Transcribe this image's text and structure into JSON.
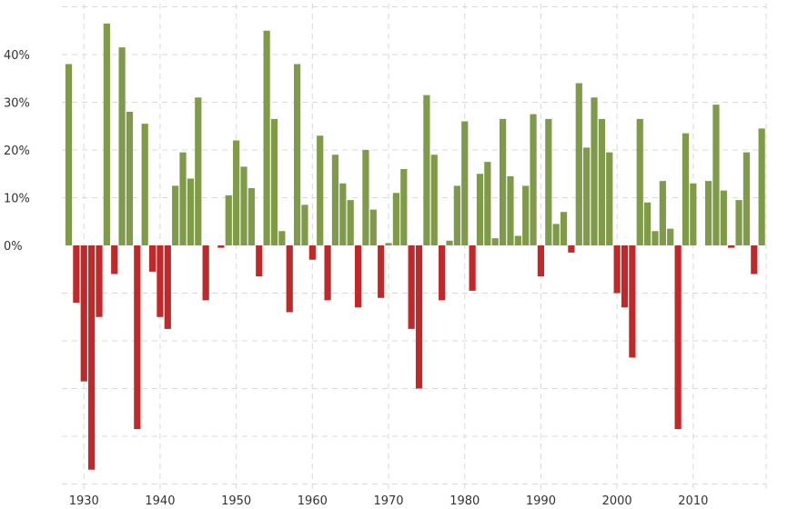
{
  "chart_data": {
    "type": "bar",
    "title": "",
    "xlabel": "",
    "ylabel": "",
    "x": [
      1928,
      1929,
      1930,
      1931,
      1932,
      1933,
      1934,
      1935,
      1936,
      1937,
      1938,
      1939,
      1940,
      1941,
      1942,
      1943,
      1944,
      1945,
      1946,
      1947,
      1948,
      1949,
      1950,
      1951,
      1952,
      1953,
      1954,
      1955,
      1956,
      1957,
      1958,
      1959,
      1960,
      1961,
      1962,
      1963,
      1964,
      1965,
      1966,
      1967,
      1968,
      1969,
      1970,
      1971,
      1972,
      1973,
      1974,
      1975,
      1976,
      1977,
      1978,
      1979,
      1980,
      1981,
      1982,
      1983,
      1984,
      1985,
      1986,
      1987,
      1988,
      1989,
      1990,
      1991,
      1992,
      1993,
      1994,
      1995,
      1996,
      1997,
      1998,
      1999,
      2000,
      2001,
      2002,
      2003,
      2004,
      2005,
      2006,
      2007,
      2008,
      2009,
      2010,
      2011,
      2012,
      2013,
      2014,
      2015,
      2016,
      2017,
      2018,
      2019
    ],
    "values": [
      38.0,
      -12.0,
      -28.5,
      -47.0,
      -15.0,
      46.5,
      -6.0,
      41.5,
      28.0,
      -38.5,
      25.5,
      -5.5,
      -15.0,
      -17.5,
      12.5,
      19.5,
      14.0,
      31.0,
      -11.5,
      0.0,
      -0.5,
      10.5,
      22.0,
      16.5,
      12.0,
      -6.5,
      45.0,
      26.5,
      3.0,
      -14.0,
      38.0,
      8.5,
      -3.0,
      23.0,
      -11.5,
      19.0,
      13.0,
      9.5,
      -13.0,
      20.0,
      7.5,
      -11.0,
      0.5,
      11.0,
      16.0,
      -17.5,
      -30.0,
      31.5,
      19.0,
      -11.5,
      1.0,
      12.5,
      26.0,
      -9.5,
      15.0,
      17.5,
      1.5,
      26.5,
      14.5,
      2.0,
      12.5,
      27.5,
      -6.5,
      26.5,
      4.5,
      7.0,
      -1.5,
      34.0,
      20.5,
      31.0,
      26.5,
      19.5,
      -10.0,
      -13.0,
      -23.5,
      26.5,
      9.0,
      3.0,
      13.5,
      3.5,
      -38.5,
      23.5,
      13.0,
      0.0,
      13.5,
      29.5,
      11.5,
      -0.5,
      9.5,
      19.5,
      -6.0,
      24.5
    ],
    "yticks": [
      0,
      10,
      20,
      30,
      40
    ],
    "ytick_labels": [
      "0%",
      "10%",
      "20%",
      "30%",
      "40%"
    ],
    "xticks": [
      1930,
      1940,
      1950,
      1960,
      1970,
      1980,
      1990,
      2000,
      2010
    ],
    "xtick_labels": [
      "1930",
      "1940",
      "1950",
      "1960",
      "1970",
      "1980",
      "1990",
      "2000",
      "2010"
    ],
    "ylim": [
      -50,
      50
    ],
    "grid": true,
    "legend": "none",
    "colors": {
      "positive": "#7f9a48",
      "negative": "#c0282a",
      "grid": "#d9d9d9"
    }
  }
}
